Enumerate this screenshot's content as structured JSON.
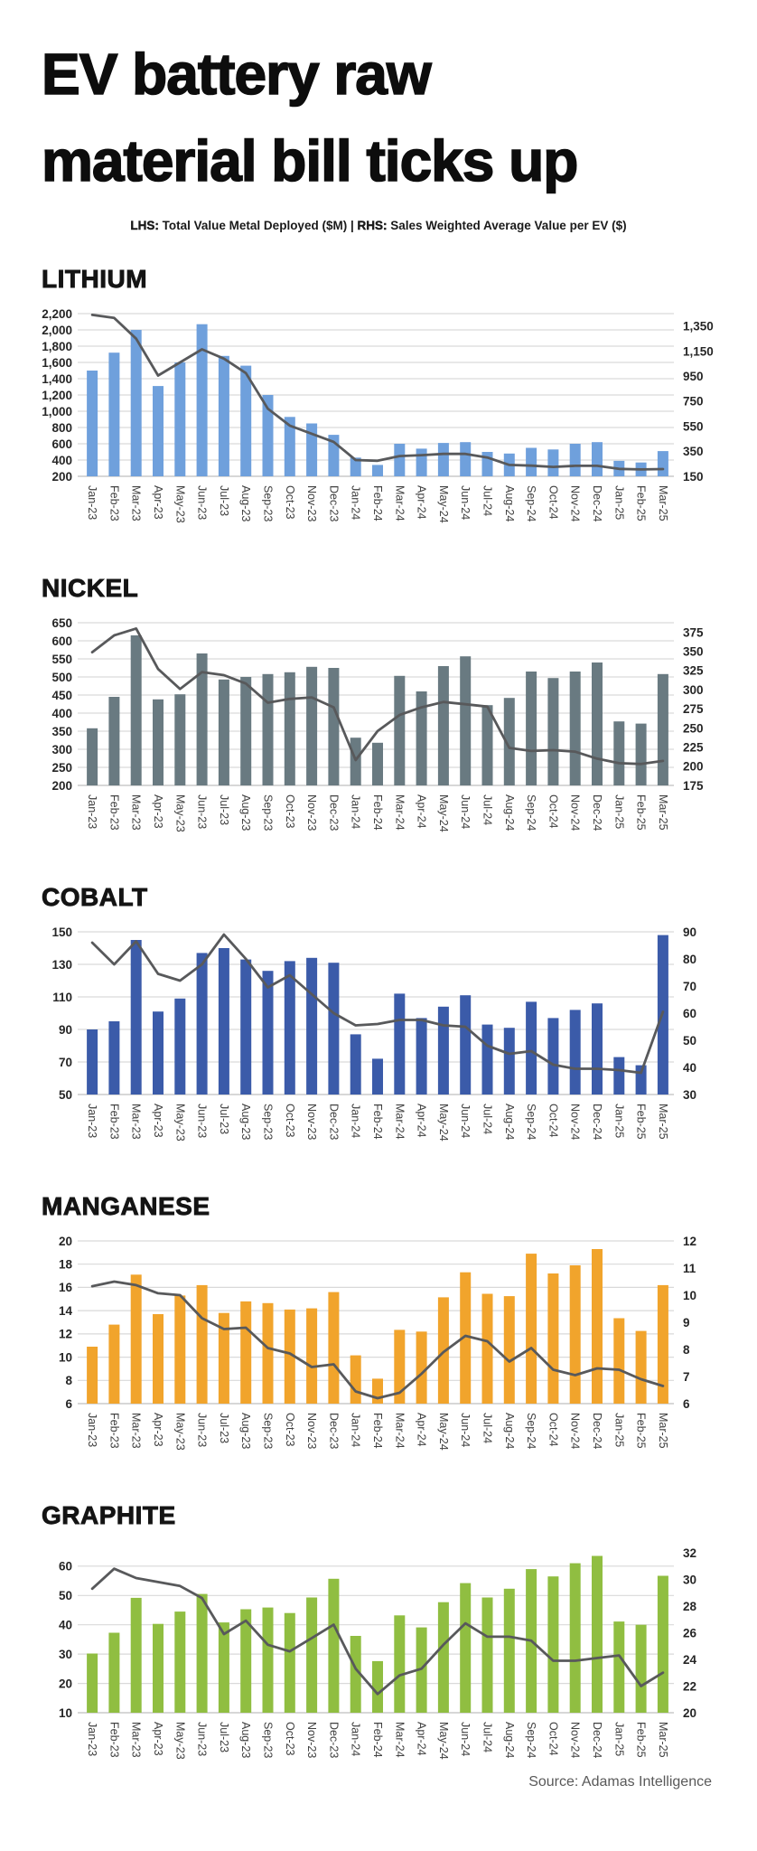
{
  "page": {
    "title_line1": "EV battery raw",
    "title_line2": "material bill ticks up",
    "subtitle_lhs_label": "LHS:",
    "subtitle_lhs_text": " Total Value Metal Deployed ($M) | ",
    "subtitle_rhs_label": "RHS:",
    "subtitle_rhs_text": " Sales Weighted Average Value per EV ($)",
    "source": "Source: Adamas Intelligence"
  },
  "chart_data": {
    "type": "bar+line",
    "legend": {
      "bars": "Total Value Metal Deployed ($M) — left axis",
      "line": "Sales Weighted Average Value per EV ($) — right axis"
    },
    "categories": [
      "Jan-23",
      "Feb-23",
      "Mar-23",
      "Apr-23",
      "May-23",
      "Jun-23",
      "Jul-23",
      "Aug-23",
      "Sep-23",
      "Oct-23",
      "Nov-23",
      "Dec-23",
      "Jan-24",
      "Feb-24",
      "Mar-24",
      "Apr-24",
      "May-24",
      "Jun-24",
      "Jul-24",
      "Aug-24",
      "Sep-24",
      "Oct-24",
      "Nov-24",
      "Dec-24",
      "Jan-25",
      "Feb-25",
      "Mar-25"
    ],
    "charts": [
      {
        "name": "LITHIUM",
        "bar_color": "#6FA0DC",
        "line_color": "#58595B",
        "bars": [
          1500,
          1720,
          2000,
          1310,
          1600,
          2070,
          1680,
          1560,
          1200,
          930,
          850,
          710,
          430,
          340,
          600,
          540,
          610,
          620,
          500,
          480,
          550,
          530,
          600,
          620,
          390,
          370,
          510
        ],
        "line_rhs": [
          1440,
          1415,
          1250,
          955,
          1060,
          1165,
          1090,
          975,
          690,
          555,
          490,
          425,
          280,
          274,
          312,
          319,
          329,
          329,
          300,
          241,
          235,
          225,
          234,
          234,
          209,
          205,
          208
        ],
        "left_axis": {
          "min": 200,
          "max": 2200,
          "tick_values": [
            2200,
            2000,
            1800,
            1600,
            1400,
            1200,
            1000,
            800,
            600,
            400,
            200
          ],
          "tick_labels": [
            "2,200",
            "2,000",
            "1,800",
            "1,600",
            "1,400",
            "1,200",
            "1,000",
            "800",
            "600",
            "400",
            "200"
          ]
        },
        "right_axis": {
          "min": 150,
          "max": 1450,
          "tick_values": [
            1350,
            1150,
            950,
            750,
            550,
            350,
            150
          ],
          "tick_labels": [
            "1,350",
            "1,150",
            "950",
            "750",
            "550",
            "350",
            "150"
          ]
        }
      },
      {
        "name": "NICKEL",
        "bar_color": "#697A81",
        "line_color": "#58595B",
        "bars": [
          358,
          445,
          615,
          438,
          452,
          565,
          493,
          500,
          508,
          513,
          528,
          525,
          332,
          318,
          503,
          460,
          530,
          557,
          422,
          442,
          515,
          497,
          515,
          540,
          377,
          371,
          508
        ],
        "line_rhs": [
          349,
          371,
          380,
          327,
          301,
          323,
          319,
          308,
          283,
          288,
          290,
          277,
          208,
          246,
          267,
          277,
          284,
          281,
          278,
          224,
          220,
          221,
          219,
          210,
          204,
          203,
          207
        ],
        "left_axis": {
          "min": 200,
          "max": 650,
          "tick_values": [
            650,
            600,
            550,
            500,
            450,
            400,
            350,
            300,
            250,
            200
          ],
          "tick_labels": [
            "650",
            "600",
            "550",
            "500",
            "450",
            "400",
            "350",
            "300",
            "250",
            "200"
          ]
        },
        "right_axis": {
          "min": 175,
          "max": 387.5,
          "tick_values": [
            375,
            350,
            325,
            300,
            275,
            250,
            225,
            200,
            175
          ],
          "tick_labels": [
            "375",
            "350",
            "325",
            "300",
            "275",
            "250",
            "225",
            "200",
            "175"
          ]
        }
      },
      {
        "name": "COBALT",
        "bar_color": "#3B5BA9",
        "line_color": "#58595B",
        "bars": [
          90,
          95,
          145,
          101,
          109,
          137,
          140,
          133,
          126,
          132,
          134,
          131,
          87,
          72,
          112,
          97,
          104,
          111,
          93,
          91,
          107,
          97,
          102,
          106,
          73,
          68,
          148
        ],
        "line_rhs": [
          86,
          78,
          86.5,
          74.5,
          72,
          78,
          89,
          80,
          69.5,
          74,
          67,
          60,
          55.5,
          56,
          57.5,
          57.5,
          55.5,
          55,
          48,
          45,
          46,
          41,
          39.5,
          39.5,
          39,
          38,
          60.5
        ],
        "left_axis": {
          "min": 50,
          "max": 150,
          "tick_values": [
            150,
            130,
            110,
            90,
            70,
            50
          ],
          "tick_labels": [
            "150",
            "130",
            "110",
            "90",
            "70",
            "50"
          ]
        },
        "right_axis": {
          "min": 30,
          "max": 90,
          "tick_values": [
            90,
            80,
            70,
            60,
            50,
            40,
            30
          ],
          "tick_labels": [
            "90",
            "80",
            "70",
            "60",
            "50",
            "40",
            "30"
          ]
        }
      },
      {
        "name": "MANGANESE",
        "bar_color": "#F1A42C",
        "line_color": "#58595B",
        "bars": [
          10.9,
          12.8,
          17.1,
          13.7,
          15.3,
          16.2,
          13.8,
          14.8,
          14.65,
          14.1,
          14.2,
          15.6,
          10.15,
          8.15,
          12.35,
          12.2,
          15.15,
          17.3,
          15.45,
          15.25,
          18.9,
          17.2,
          17.9,
          19.3,
          13.35,
          12.25,
          16.2
        ],
        "line_rhs": [
          10.33,
          10.5,
          10.37,
          10.07,
          10.0,
          9.15,
          8.75,
          8.8,
          8.05,
          7.85,
          7.35,
          7.45,
          6.45,
          6.2,
          6.4,
          7.1,
          7.9,
          8.5,
          8.3,
          7.55,
          8.05,
          7.25,
          7.05,
          7.3,
          7.25,
          6.9,
          6.65
        ],
        "left_axis": {
          "min": 6,
          "max": 20,
          "tick_values": [
            20,
            18,
            16,
            14,
            12,
            10,
            8,
            6
          ],
          "tick_labels": [
            "20",
            "18",
            "16",
            "14",
            "12",
            "10",
            "8",
            "6"
          ]
        },
        "right_axis": {
          "min": 6,
          "max": 12,
          "tick_values": [
            12,
            11,
            10,
            9,
            8,
            7,
            6
          ],
          "tick_labels": [
            "12",
            "11",
            "10",
            "9",
            "8",
            "7",
            "6"
          ]
        }
      },
      {
        "name": "GRAPHITE",
        "bar_color": "#90BE41",
        "line_color": "#58595B",
        "bars": [
          30.2,
          37.3,
          49.2,
          40.3,
          44.5,
          50.5,
          40.8,
          45.3,
          45.9,
          44.0,
          49.3,
          55.7,
          36.2,
          27.6,
          43.2,
          39.1,
          47.7,
          54.2,
          49.3,
          52.3,
          59.0,
          56.5,
          61.0,
          63.5,
          41.1,
          40.0,
          56.7
        ],
        "line_rhs": [
          29.3,
          30.8,
          30.1,
          29.8,
          29.5,
          28.6,
          25.9,
          26.9,
          25.1,
          24.6,
          25.6,
          26.6,
          23.3,
          21.4,
          22.8,
          23.3,
          25.1,
          26.7,
          25.7,
          25.7,
          25.4,
          23.9,
          23.9,
          24.1,
          24.3,
          22.0,
          23.0
        ],
        "left_axis": {
          "min": 10,
          "max": 65.5,
          "tick_values": [
            60,
            50,
            40,
            30,
            20,
            10
          ],
          "tick_labels": [
            "60",
            "50",
            "40",
            "30",
            "20",
            "10"
          ]
        },
        "right_axis": {
          "min": 20,
          "max": 32.2,
          "tick_values": [
            32,
            30,
            28,
            26,
            24,
            22,
            20
          ],
          "tick_labels": [
            "32",
            "30",
            "28",
            "26",
            "24",
            "22",
            "20"
          ]
        }
      }
    ]
  }
}
